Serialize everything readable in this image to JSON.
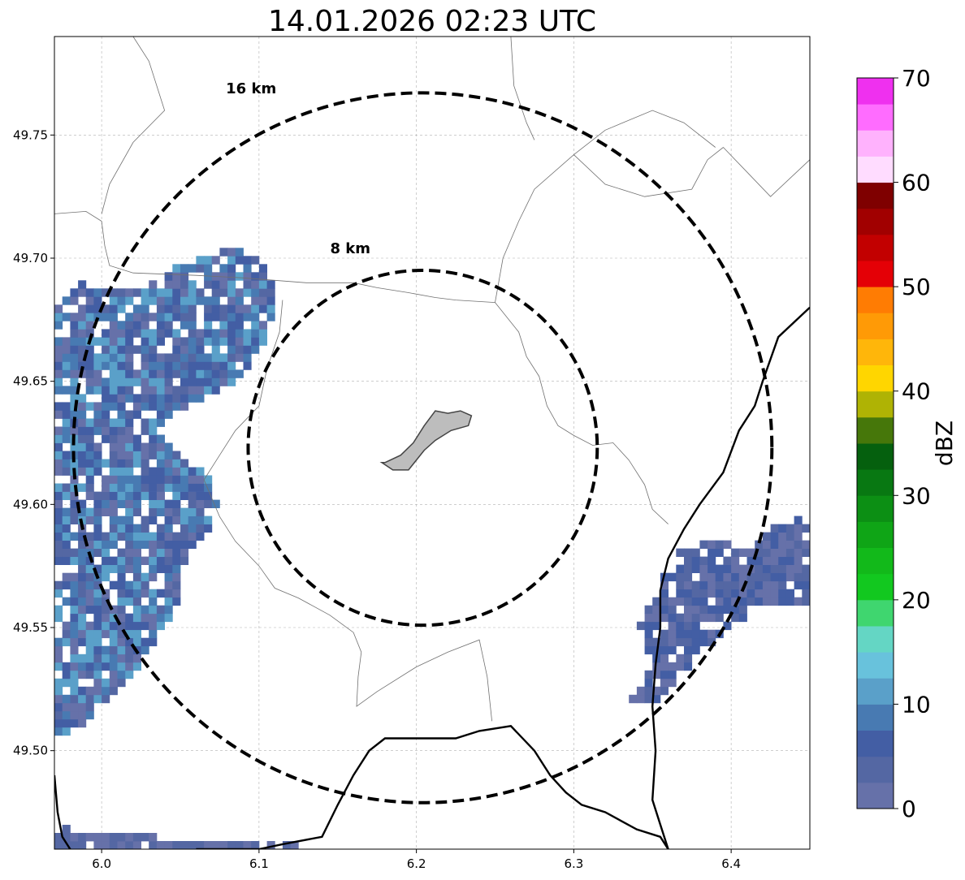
{
  "chart_data": {
    "type": "heatmap",
    "title": "14.01.2026 02:23 UTC",
    "xlim": [
      5.97,
      6.45
    ],
    "ylim": [
      49.46,
      49.79
    ],
    "x_ticks": [
      {
        "value": 6.0,
        "label": "6.0"
      },
      {
        "value": 6.1,
        "label": "6.1"
      },
      {
        "value": 6.2,
        "label": "6.2"
      },
      {
        "value": 6.3,
        "label": "6.3"
      },
      {
        "value": 6.4,
        "label": "6.4"
      }
    ],
    "y_ticks": [
      {
        "value": 49.5,
        "label": "49.50"
      },
      {
        "value": 49.55,
        "label": "49.55"
      },
      {
        "value": 49.6,
        "label": "49.60"
      },
      {
        "value": 49.65,
        "label": "49.65"
      },
      {
        "value": 49.7,
        "label": "49.70"
      },
      {
        "value": 49.75,
        "label": "49.75"
      }
    ],
    "grid": true,
    "range_rings": [
      {
        "label": "8 km",
        "center": [
          6.204,
          49.623
        ],
        "radius_km": 8,
        "label_at": [
          6.158,
          49.702
        ]
      },
      {
        "label": "16 km",
        "center": [
          6.204,
          49.623
        ],
        "radius_km": 16,
        "label_at": [
          6.095,
          49.767
        ]
      }
    ],
    "colorbar": {
      "label": "dBZ",
      "min": 0,
      "max": 70,
      "tick_values": [
        0,
        10,
        20,
        30,
        40,
        50,
        60,
        70
      ],
      "bins": [
        {
          "from": 0.0,
          "to": 2.5,
          "color": "#6671a9"
        },
        {
          "from": 2.5,
          "to": 5.0,
          "color": "#5467a3"
        },
        {
          "from": 5.0,
          "to": 7.5,
          "color": "#435ea4"
        },
        {
          "from": 7.5,
          "to": 10.0,
          "color": "#487ab2"
        },
        {
          "from": 10.0,
          "to": 12.5,
          "color": "#5aa0c9"
        },
        {
          "from": 12.5,
          "to": 15.0,
          "color": "#68c2dc"
        },
        {
          "from": 15.0,
          "to": 17.5,
          "color": "#64d6c4"
        },
        {
          "from": 17.5,
          "to": 20.0,
          "color": "#3fd66f"
        },
        {
          "from": 20.0,
          "to": 22.5,
          "color": "#12c81f"
        },
        {
          "from": 22.5,
          "to": 25.0,
          "color": "#12b91a"
        },
        {
          "from": 25.0,
          "to": 27.5,
          "color": "#0fa516"
        },
        {
          "from": 27.5,
          "to": 30.0,
          "color": "#0c8f14"
        },
        {
          "from": 30.0,
          "to": 32.5,
          "color": "#087812"
        },
        {
          "from": 32.5,
          "to": 35.0,
          "color": "#05600e"
        },
        {
          "from": 35.0,
          "to": 37.5,
          "color": "#46770a"
        },
        {
          "from": 37.5,
          "to": 40.0,
          "color": "#afb304"
        },
        {
          "from": 40.0,
          "to": 42.5,
          "color": "#ffd600"
        },
        {
          "from": 42.5,
          "to": 45.0,
          "color": "#ffb60a"
        },
        {
          "from": 45.0,
          "to": 47.5,
          "color": "#ff9a06"
        },
        {
          "from": 47.5,
          "to": 50.0,
          "color": "#ff7c03"
        },
        {
          "from": 50.0,
          "to": 52.5,
          "color": "#e40006"
        },
        {
          "from": 52.5,
          "to": 55.0,
          "color": "#c20000"
        },
        {
          "from": 55.0,
          "to": 57.5,
          "color": "#a10000"
        },
        {
          "from": 57.5,
          "to": 60.0,
          "color": "#7f0000"
        },
        {
          "from": 60.0,
          "to": 62.5,
          "color": "#ffdcff"
        },
        {
          "from": 62.5,
          "to": 65.0,
          "color": "#ffb2fd"
        },
        {
          "from": 65.0,
          "to": 67.5,
          "color": "#ff6cff"
        },
        {
          "from": 67.5,
          "to": 70.0,
          "color": "#ef30ef"
        }
      ]
    },
    "echo_regions": [
      {
        "name": "western-band",
        "dbz_range": [
          0,
          12.5
        ],
        "polygon": [
          [
            5.97,
            49.68
          ],
          [
            5.985,
            49.69
          ],
          [
            6.02,
            49.688
          ],
          [
            6.06,
            49.7
          ],
          [
            6.09,
            49.705
          ],
          [
            6.105,
            49.695
          ],
          [
            6.115,
            49.683
          ],
          [
            6.105,
            49.67
          ],
          [
            6.1,
            49.658
          ],
          [
            6.082,
            49.648
          ],
          [
            6.06,
            49.642
          ],
          [
            6.04,
            49.633
          ],
          [
            6.04,
            49.625
          ],
          [
            6.055,
            49.618
          ],
          [
            6.07,
            49.61
          ],
          [
            6.075,
            49.598
          ],
          [
            6.07,
            49.59
          ],
          [
            6.055,
            49.58
          ],
          [
            6.052,
            49.566
          ],
          [
            6.045,
            49.555
          ],
          [
            6.035,
            49.545
          ],
          [
            6.02,
            49.532
          ],
          [
            6.005,
            49.52
          ],
          [
            5.99,
            49.51
          ],
          [
            5.97,
            49.505
          ]
        ]
      },
      {
        "name": "eastern-cell",
        "dbz_range": [
          0,
          7.5
        ],
        "polygon": [
          [
            6.335,
            49.52
          ],
          [
            6.35,
            49.535
          ],
          [
            6.342,
            49.55
          ],
          [
            6.355,
            49.57
          ],
          [
            6.37,
            49.583
          ],
          [
            6.39,
            49.585
          ],
          [
            6.41,
            49.582
          ],
          [
            6.425,
            49.59
          ],
          [
            6.445,
            49.595
          ],
          [
            6.45,
            49.59
          ],
          [
            6.45,
            49.558
          ],
          [
            6.43,
            49.56
          ],
          [
            6.41,
            49.555
          ],
          [
            6.395,
            49.548
          ],
          [
            6.38,
            49.54
          ],
          [
            6.37,
            49.53
          ],
          [
            6.35,
            49.518
          ]
        ]
      },
      {
        "name": "south-speckles",
        "dbz_range": [
          0,
          5.0
        ],
        "polygon": [
          [
            5.97,
            49.46
          ],
          [
            5.975,
            49.47
          ],
          [
            5.995,
            49.465
          ],
          [
            6.02,
            49.466
          ],
          [
            6.06,
            49.463
          ],
          [
            6.09,
            49.463
          ],
          [
            6.12,
            49.465
          ],
          [
            6.13,
            49.46
          ]
        ]
      }
    ],
    "boundaries": {
      "thin_borders": [
        [
          [
            5.97,
            49.718
          ],
          [
            5.99,
            49.719
          ],
          [
            6.0,
            49.715
          ],
          [
            6.002,
            49.705
          ],
          [
            6.005,
            49.697
          ],
          [
            6.02,
            49.694
          ],
          [
            6.06,
            49.693
          ],
          [
            6.09,
            49.692
          ],
          [
            6.11,
            49.691
          ],
          [
            6.13,
            49.69
          ],
          [
            6.16,
            49.69
          ],
          [
            6.175,
            49.688
          ],
          [
            6.195,
            49.686
          ],
          [
            6.212,
            49.684
          ],
          [
            6.225,
            49.683
          ],
          [
            6.25,
            49.682
          ],
          [
            6.265,
            49.67
          ],
          [
            6.27,
            49.66
          ],
          [
            6.278,
            49.652
          ],
          [
            6.283,
            49.64
          ],
          [
            6.29,
            49.632
          ],
          [
            6.3,
            49.628
          ],
          [
            6.312,
            49.624
          ],
          [
            6.325,
            49.625
          ],
          [
            6.335,
            49.618
          ],
          [
            6.345,
            49.608
          ],
          [
            6.35,
            49.598
          ],
          [
            6.36,
            49.592
          ]
        ],
        [
          [
            6.115,
            49.683
          ],
          [
            6.113,
            49.67
          ],
          [
            6.105,
            49.655
          ],
          [
            6.1,
            49.64
          ],
          [
            6.085,
            49.63
          ],
          [
            6.075,
            49.62
          ],
          [
            6.065,
            49.61
          ],
          [
            6.075,
            49.595
          ],
          [
            6.085,
            49.585
          ],
          [
            6.1,
            49.575
          ],
          [
            6.11,
            49.566
          ],
          [
            6.125,
            49.562
          ],
          [
            6.145,
            49.555
          ],
          [
            6.16,
            49.548
          ],
          [
            6.165,
            49.54
          ],
          [
            6.163,
            49.53
          ],
          [
            6.162,
            49.518
          ],
          [
            6.175,
            49.524
          ],
          [
            6.2,
            49.534
          ],
          [
            6.22,
            49.54
          ],
          [
            6.24,
            49.545
          ],
          [
            6.245,
            49.53
          ],
          [
            6.248,
            49.512
          ]
        ],
        [
          [
            6.25,
            49.682
          ],
          [
            6.255,
            49.7
          ],
          [
            6.265,
            49.715
          ],
          [
            6.275,
            49.728
          ],
          [
            6.3,
            49.742
          ],
          [
            6.32,
            49.752
          ],
          [
            6.35,
            49.76
          ],
          [
            6.37,
            49.755
          ],
          [
            6.39,
            49.745
          ]
        ],
        [
          [
            6.02,
            49.79
          ],
          [
            6.03,
            49.78
          ],
          [
            6.04,
            49.76
          ],
          [
            6.02,
            49.747
          ],
          [
            6.005,
            49.73
          ],
          [
            6.0,
            49.718
          ]
        ],
        [
          [
            6.26,
            49.79
          ],
          [
            6.262,
            49.77
          ],
          [
            6.27,
            49.755
          ],
          [
            6.275,
            49.748
          ]
        ],
        [
          [
            6.3,
            49.742
          ],
          [
            6.32,
            49.73
          ],
          [
            6.345,
            49.725
          ],
          [
            6.375,
            49.728
          ],
          [
            6.385,
            49.74
          ],
          [
            6.395,
            49.745
          ],
          [
            6.41,
            49.735
          ],
          [
            6.425,
            49.725
          ],
          [
            6.45,
            49.74
          ]
        ]
      ],
      "thick_borders": [
        [
          [
            6.45,
            49.68
          ],
          [
            6.43,
            49.668
          ],
          [
            6.42,
            49.65
          ],
          [
            6.415,
            49.64
          ],
          [
            6.405,
            49.63
          ],
          [
            6.395,
            49.613
          ],
          [
            6.38,
            49.6
          ],
          [
            6.37,
            49.59
          ],
          [
            6.36,
            49.578
          ],
          [
            6.355,
            49.565
          ],
          [
            6.355,
            49.55
          ],
          [
            6.352,
            49.535
          ],
          [
            6.35,
            49.518
          ],
          [
            6.352,
            49.5
          ],
          [
            6.35,
            49.48
          ],
          [
            6.355,
            49.47
          ],
          [
            6.36,
            49.46
          ]
        ],
        [
          [
            6.06,
            49.46
          ],
          [
            6.08,
            49.46
          ],
          [
            6.1,
            49.46
          ],
          [
            6.115,
            49.462
          ],
          [
            6.14,
            49.465
          ],
          [
            6.15,
            49.478
          ],
          [
            6.16,
            49.49
          ],
          [
            6.17,
            49.5
          ],
          [
            6.18,
            49.505
          ],
          [
            6.2,
            49.505
          ],
          [
            6.225,
            49.505
          ],
          [
            6.24,
            49.508
          ],
          [
            6.26,
            49.51
          ],
          [
            6.275,
            49.5
          ],
          [
            6.285,
            49.49
          ],
          [
            6.295,
            49.483
          ],
          [
            6.305,
            49.478
          ],
          [
            6.32,
            49.475
          ],
          [
            6.34,
            49.468
          ],
          [
            6.355,
            49.465
          ],
          [
            6.36,
            49.46
          ]
        ],
        [
          [
            5.97,
            49.49
          ],
          [
            5.972,
            49.475
          ],
          [
            5.975,
            49.465
          ],
          [
            5.98,
            49.46
          ]
        ]
      ],
      "town_polygon": [
        [
          6.18,
          49.617
        ],
        [
          6.19,
          49.62
        ],
        [
          6.198,
          49.625
        ],
        [
          6.205,
          49.632
        ],
        [
          6.212,
          49.638
        ],
        [
          6.22,
          49.637
        ],
        [
          6.228,
          49.638
        ],
        [
          6.235,
          49.636
        ],
        [
          6.233,
          49.632
        ],
        [
          6.222,
          49.63
        ],
        [
          6.212,
          49.626
        ],
        [
          6.205,
          49.622
        ],
        [
          6.195,
          49.614
        ],
        [
          6.185,
          49.614
        ],
        [
          6.178,
          49.617
        ]
      ]
    }
  }
}
